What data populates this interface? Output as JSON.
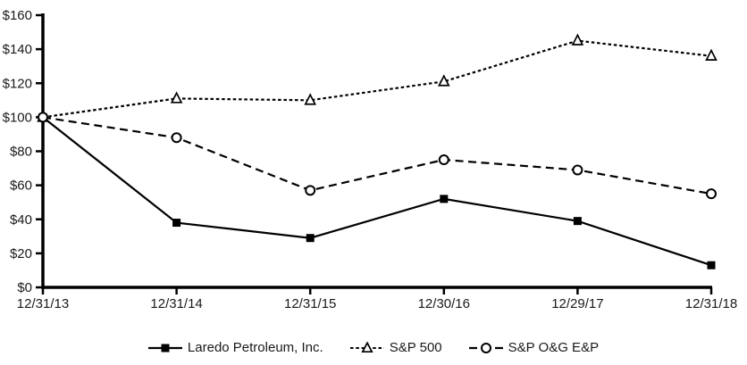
{
  "chart_data": {
    "type": "line",
    "title": "",
    "xlabel": "",
    "ylabel": "",
    "categories": [
      "12/31/13",
      "12/31/14",
      "12/31/15",
      "12/30/16",
      "12/29/17",
      "12/31/18"
    ],
    "series": [
      {
        "name": "Laredo Petroleum, Inc.",
        "values": [
          100,
          38,
          29,
          52,
          39,
          13
        ],
        "marker": "square",
        "marker_fill": "filled",
        "line_style": "solid"
      },
      {
        "name": "S&P 500",
        "values": [
          100,
          111,
          110,
          121,
          145,
          136
        ],
        "marker": "triangle",
        "marker_fill": "open",
        "line_style": "dotted"
      },
      {
        "name": "S&P O&G E&P",
        "values": [
          100,
          88,
          57,
          75,
          69,
          55
        ],
        "marker": "circle",
        "marker_fill": "open",
        "line_style": "dashed"
      }
    ],
    "ylim": [
      0,
      160
    ],
    "ytick_step": 20,
    "ytick_labels": [
      "$0",
      "$20",
      "$40",
      "$60",
      "$80",
      "$100",
      "$120",
      "$140",
      "$160"
    ],
    "grid": "off",
    "legend_position": "bottom",
    "series_color": "#000000",
    "axis_color": "#000000",
    "label_color": "#1a1a1a",
    "background_color": "#ffffff"
  }
}
